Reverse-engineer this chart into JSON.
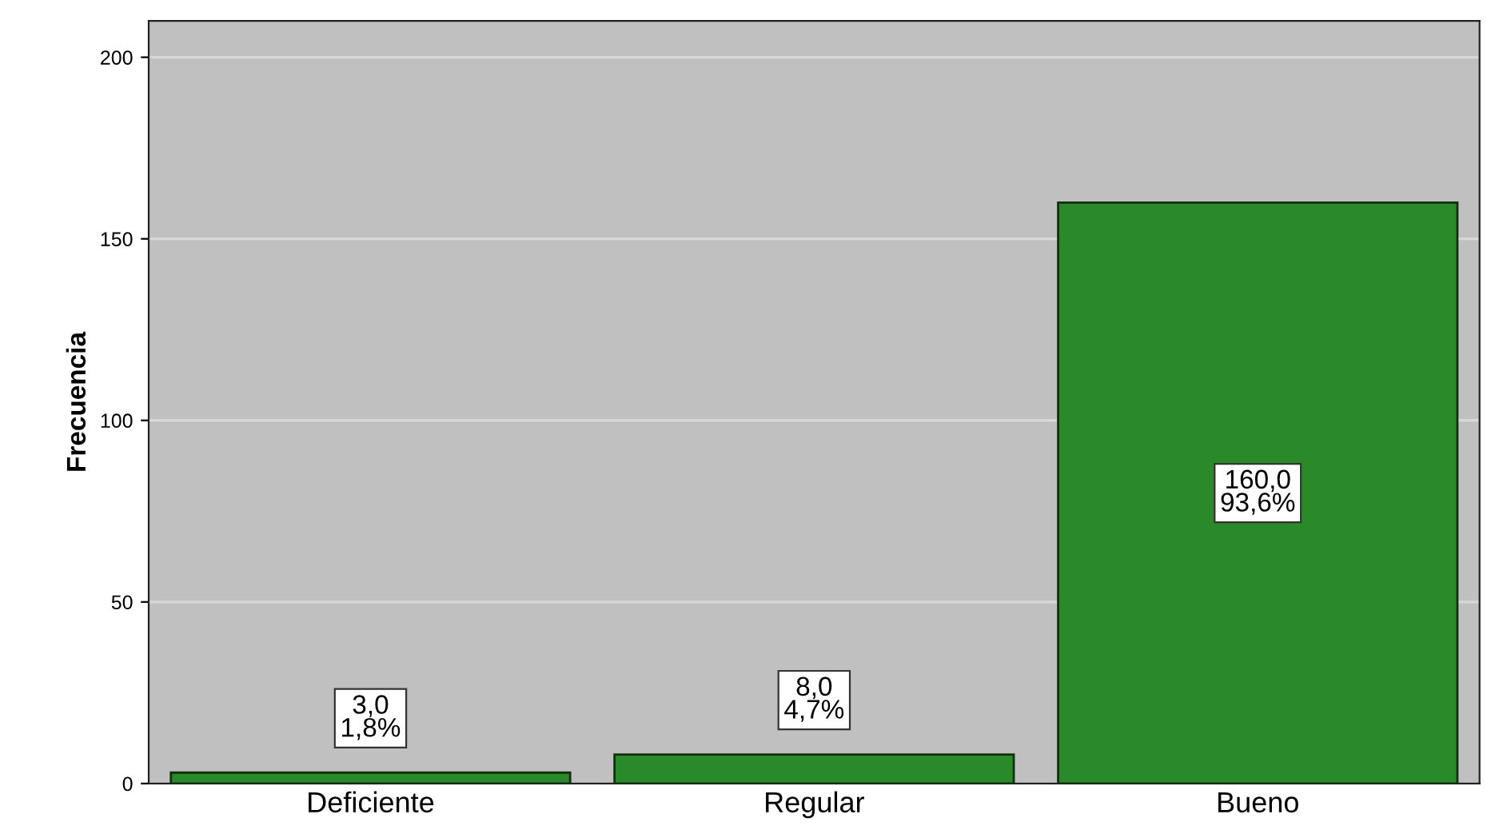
{
  "chart_data": {
    "type": "bar",
    "ylabel": "Frecuencia",
    "categories": [
      "Deficiente",
      "Regular",
      "Bueno"
    ],
    "values": [
      3,
      8,
      160
    ],
    "value_labels": [
      "3,0\n1,8%",
      "8,0\n4,7%",
      "160,0\n93,6%"
    ],
    "color": "#2a8a2a",
    "ylim": [
      0,
      210
    ],
    "yticks": [
      0,
      50,
      100,
      150,
      200
    ],
    "grid": "y",
    "legend": false
  }
}
